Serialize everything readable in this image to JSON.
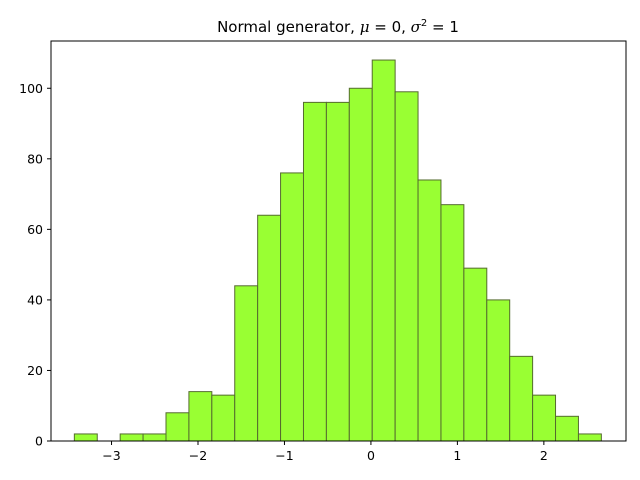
{
  "chart_data": {
    "type": "bar",
    "title": {
      "prefix": "Normal generator,  ",
      "mu_symbol": "μ",
      "mu_value": " = 0, ",
      "sigma_symbol": "σ",
      "sigma_exp": "2",
      "sigma_value": " = 1"
    },
    "xlabel": "",
    "ylabel": "",
    "xlim": [
      -3.7,
      2.95
    ],
    "ylim": [
      0,
      113.4
    ],
    "x_ticks": [
      -3,
      -2,
      -1,
      0,
      1,
      2
    ],
    "x_tick_labels": [
      "−3",
      "−2",
      "−1",
      "0",
      "1",
      "2"
    ],
    "y_ticks": [
      0,
      20,
      40,
      60,
      80,
      100
    ],
    "y_tick_labels": [
      "0",
      "20",
      "40",
      "60",
      "80",
      "100"
    ],
    "bin_start": -3.43,
    "bin_width": 0.265,
    "counts": [
      2,
      0,
      2,
      2,
      8,
      14,
      13,
      44,
      64,
      76,
      96,
      96,
      100,
      108,
      99,
      74,
      67,
      49,
      40,
      24,
      13,
      7,
      2
    ],
    "bar_color": "#99ff33",
    "bar_edge_color": "#556b2f",
    "grid": false,
    "legend": "none"
  }
}
